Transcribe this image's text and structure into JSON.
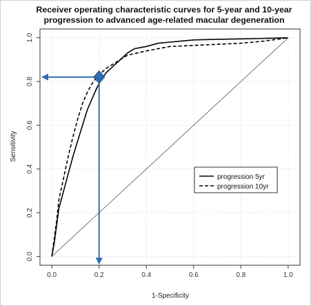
{
  "chart_data": {
    "type": "line",
    "title_lines": [
      "Receiver operating characteristic curves for 5-year and 10-year",
      "progression to advanced age-related macular degeneration"
    ],
    "xlabel": "1-Specificity",
    "ylabel": "Sensitivity",
    "xlim": [
      -0.05,
      1.05
    ],
    "ylim": [
      -0.04,
      1.04
    ],
    "xticks": [
      0.0,
      0.2,
      0.4,
      0.6,
      0.8,
      1.0
    ],
    "xtick_labels": [
      "0.0",
      "0.2",
      "0.4",
      "0.6",
      "0.8",
      "1.0"
    ],
    "yticks": [
      0.0,
      0.2,
      0.4,
      0.6,
      0.8,
      1.0
    ],
    "ytick_labels": [
      "0.0",
      "0.2",
      "0.4",
      "0.6",
      "0.8",
      "1.0"
    ],
    "grid": true,
    "legend_position": "center-right",
    "series": [
      {
        "name": "progression 5yr",
        "style": "solid",
        "color": "#000000",
        "points": [
          [
            0.0,
            0.0
          ],
          [
            0.01,
            0.06
          ],
          [
            0.02,
            0.14
          ],
          [
            0.03,
            0.22
          ],
          [
            0.05,
            0.3
          ],
          [
            0.07,
            0.38
          ],
          [
            0.09,
            0.46
          ],
          [
            0.11,
            0.53
          ],
          [
            0.13,
            0.6
          ],
          [
            0.15,
            0.67
          ],
          [
            0.17,
            0.72
          ],
          [
            0.19,
            0.77
          ],
          [
            0.21,
            0.81
          ],
          [
            0.23,
            0.84
          ],
          [
            0.26,
            0.87
          ],
          [
            0.29,
            0.9
          ],
          [
            0.32,
            0.93
          ],
          [
            0.35,
            0.95
          ],
          [
            0.4,
            0.96
          ],
          [
            0.45,
            0.975
          ],
          [
            0.5,
            0.98
          ],
          [
            0.6,
            0.99
          ],
          [
            0.7,
            0.993
          ],
          [
            0.8,
            0.995
          ],
          [
            0.9,
            0.997
          ],
          [
            1.0,
            1.0
          ]
        ]
      },
      {
        "name": "progression 10yr",
        "style": "dashed",
        "color": "#000000",
        "points": [
          [
            0.0,
            0.0
          ],
          [
            0.01,
            0.08
          ],
          [
            0.02,
            0.16
          ],
          [
            0.03,
            0.26
          ],
          [
            0.05,
            0.36
          ],
          [
            0.07,
            0.46
          ],
          [
            0.09,
            0.55
          ],
          [
            0.11,
            0.63
          ],
          [
            0.13,
            0.7
          ],
          [
            0.15,
            0.75
          ],
          [
            0.17,
            0.79
          ],
          [
            0.19,
            0.82
          ],
          [
            0.21,
            0.84
          ],
          [
            0.23,
            0.86
          ],
          [
            0.26,
            0.88
          ],
          [
            0.29,
            0.9
          ],
          [
            0.32,
            0.92
          ],
          [
            0.36,
            0.93
          ],
          [
            0.4,
            0.94
          ],
          [
            0.45,
            0.95
          ],
          [
            0.5,
            0.96
          ],
          [
            0.6,
            0.965
          ],
          [
            0.7,
            0.97
          ],
          [
            0.8,
            0.975
          ],
          [
            0.9,
            0.985
          ],
          [
            1.0,
            1.0
          ]
        ]
      },
      {
        "name": "",
        "style": "thin",
        "color": "#555555",
        "points": [
          [
            0.0,
            0.0
          ],
          [
            1.0,
            1.0
          ]
        ]
      }
    ],
    "annotation": {
      "marker_x": 0.2,
      "marker_y": 0.82,
      "color": "#2e6db4"
    }
  }
}
